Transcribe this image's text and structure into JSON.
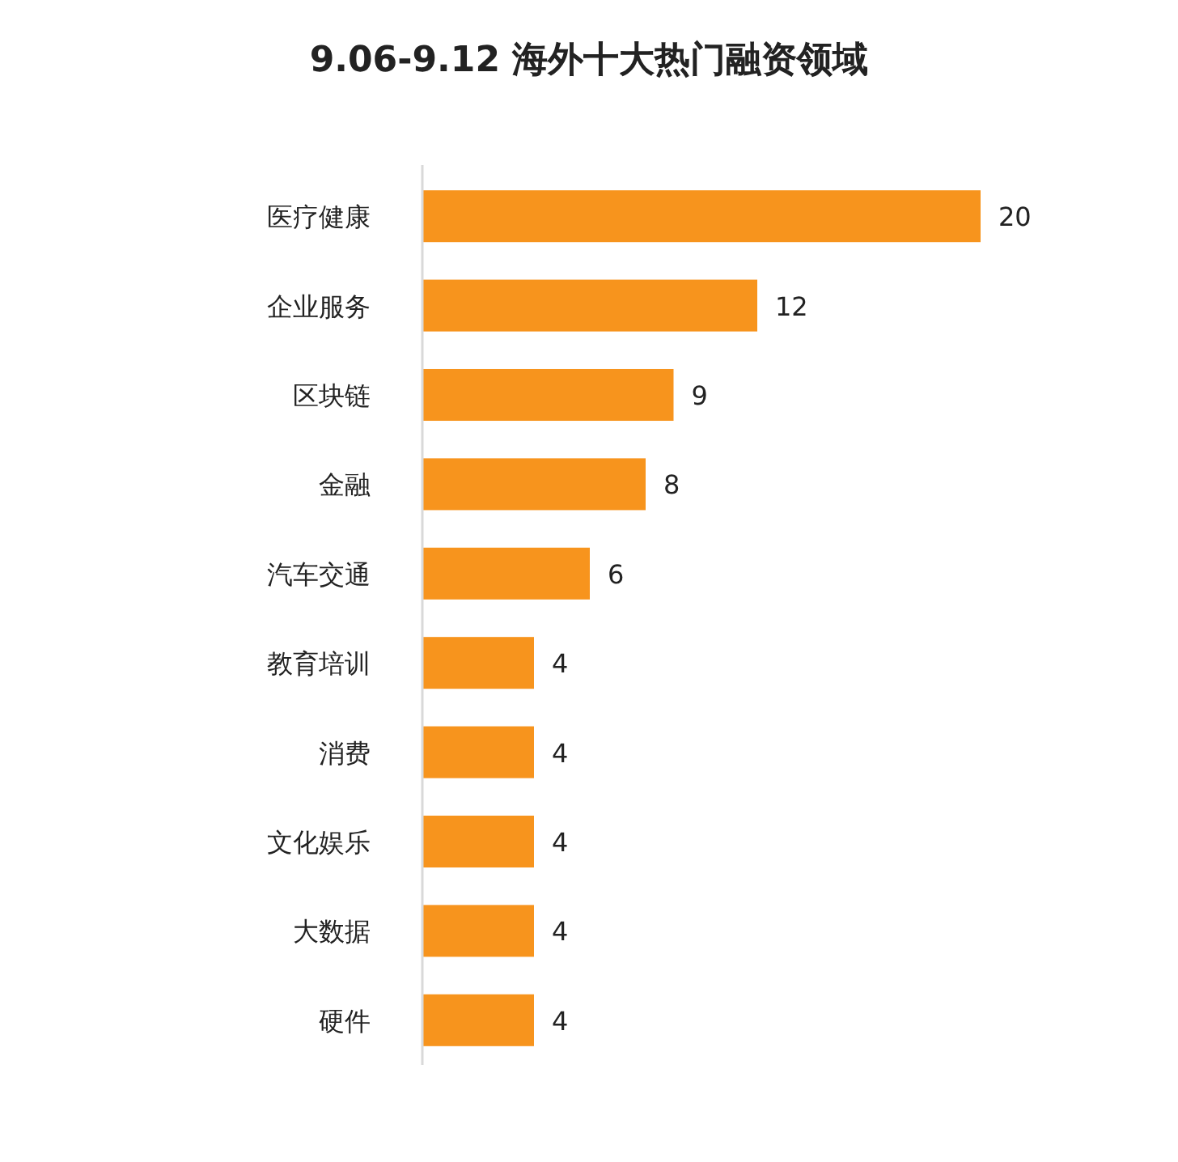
{
  "chart_data": {
    "type": "bar",
    "orientation": "horizontal",
    "title": "9.06-9.12 海外十大热门融资领域",
    "categories": [
      "医疗健康",
      "企业服务",
      "区块链",
      "金融",
      "汽车交通",
      "教育培训",
      "消费",
      "文化娱乐",
      "大数据",
      "硬件"
    ],
    "values": [
      20,
      12,
      9,
      8,
      6,
      4,
      4,
      4,
      4,
      4
    ],
    "color": "#f7941d",
    "data_labels": true
  }
}
